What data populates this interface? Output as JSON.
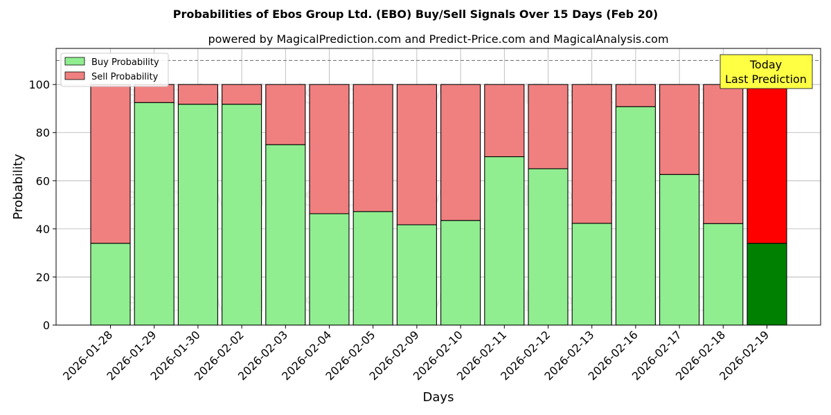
{
  "chart_data": {
    "type": "bar",
    "stacked": true,
    "title": "Probabilities of Ebos Group Ltd. (EBO) Buy/Sell Signals Over 15 Days (Feb 20)",
    "subtitle": "powered by MagicalPrediction.com and Predict-Price.com and MagicalAnalysis.com",
    "xlabel": "Days",
    "ylabel": "Probability",
    "ylim": [
      0,
      115
    ],
    "yticks": [
      0,
      20,
      40,
      60,
      80,
      100
    ],
    "reference_line": 110,
    "grid": true,
    "legend_position": "top-left",
    "categories": [
      "2026-01-28",
      "2026-01-29",
      "2026-01-30",
      "2026-02-02",
      "2026-02-03",
      "2026-02-04",
      "2026-02-05",
      "2026-02-09",
      "2026-02-10",
      "2026-02-11",
      "2026-02-12",
      "2026-02-13",
      "2026-02-16",
      "2026-02-17",
      "2026-02-18",
      "2026-02-19"
    ],
    "series": [
      {
        "name": "Buy Probability",
        "color": "#90ee90",
        "highlight_color": "#008000",
        "values": [
          34,
          92.5,
          91.8,
          91.8,
          75,
          46.3,
          47.2,
          41.7,
          43.5,
          70,
          65,
          42.3,
          90.8,
          62.6,
          42.2,
          34
        ]
      },
      {
        "name": "Sell Probability",
        "color": "#f08080",
        "highlight_color": "#ff0000",
        "values": [
          66,
          7.5,
          8.2,
          8.2,
          25,
          53.7,
          52.8,
          58.3,
          56.5,
          30,
          35,
          57.7,
          9.2,
          37.4,
          57.8,
          66
        ]
      }
    ],
    "highlight_index": 15,
    "annotation": {
      "text_lines": [
        "Today",
        "Last Prediction"
      ],
      "background": "#ffff44"
    },
    "watermarks": [
      "MagicalAnalysis.com",
      "MagicalPrediction.com"
    ]
  }
}
